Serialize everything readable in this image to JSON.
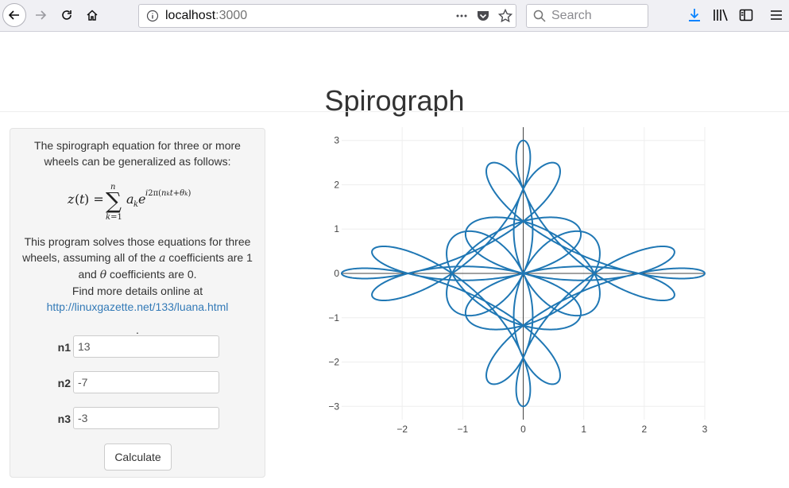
{
  "browser": {
    "url_host": "localhost",
    "url_port": ":3000",
    "search_placeholder": "Search",
    "icons": [
      "back-icon",
      "forward-icon",
      "reload-icon",
      "home-icon",
      "info-icon",
      "page-actions-icon",
      "pocket-icon",
      "star-icon",
      "search-icon",
      "download-icon",
      "library-icon",
      "sidebar-icon",
      "menu-icon"
    ]
  },
  "page": {
    "title": "Spirograph",
    "intro": "The spirograph equation for three or more wheels can be generalized as follows:",
    "desc_part1": "This program solves those equations for three wheels, assuming all of the ",
    "desc_a": "a",
    "desc_part2": " coefficients are 1 and ",
    "desc_theta": "θ",
    "desc_part3": " coefficients are 0.",
    "details_text": "Find more details online at",
    "details_link": "http://linuxgazette.net/133/luana.html",
    "dot": ".",
    "fields": [
      {
        "label": "n1",
        "value": "13"
      },
      {
        "label": "n2",
        "value": "-7"
      },
      {
        "label": "n3",
        "value": "-3"
      }
    ],
    "calculate_label": "Calculate"
  },
  "chart_data": {
    "type": "line",
    "equation": "z(t) = sum_{k=1}^{n} a_k e^{i2pi(n_k t + theta_k)}",
    "parameters": {
      "n": [
        13,
        -7,
        -3
      ],
      "a": [
        1,
        1,
        1
      ],
      "theta": [
        0,
        0,
        0
      ]
    },
    "xlim": [
      -3,
      3
    ],
    "ylim": [
      -3.3,
      3.3
    ],
    "x_ticks": [
      "−2",
      "−1",
      "0",
      "1",
      "2",
      "3"
    ],
    "y_ticks": [
      "3",
      "2",
      "1",
      "0",
      "−1",
      "−2",
      "−3"
    ],
    "grid": true,
    "line_color": "#1f77b4",
    "series": [
      {
        "t_range": [
          0,
          1
        ],
        "samples": 4000
      }
    ]
  }
}
